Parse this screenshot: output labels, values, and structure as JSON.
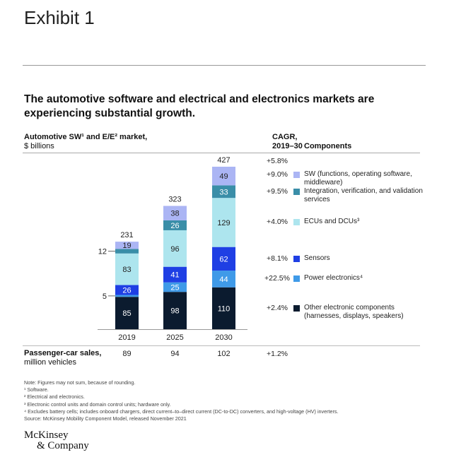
{
  "exhibit_label": "Exhibit 1",
  "title": "The automotive software and electrical and electronics markets are experiencing substantial growth.",
  "chart_data": {
    "type": "bar",
    "stacked": true,
    "ylabel_main": "Automotive SW¹ and E/E² market,",
    "ylabel_unit": "$ billions",
    "categories": [
      "2019",
      "2025",
      "2030"
    ],
    "totals": [
      "231",
      "323",
      "427"
    ],
    "series": [
      {
        "name": "Other electronic components (harnesses, displays, speakers)",
        "color": "#0b1b2f",
        "values": [
          85,
          98,
          110
        ],
        "labels": [
          "85",
          "98",
          "110"
        ],
        "cagr": "+2.4%"
      },
      {
        "name": "Power electronics⁴",
        "color": "#3f9ae8",
        "values": [
          5,
          25,
          44
        ],
        "labels": [
          "5",
          "25",
          "44"
        ],
        "cagr": "+22.5%"
      },
      {
        "name": "Sensors",
        "color": "#1f3fe4",
        "values": [
          26,
          41,
          62
        ],
        "labels": [
          "26",
          "41",
          "62"
        ],
        "cagr": "+8.1%"
      },
      {
        "name": "ECUs and DCUs³",
        "color": "#ade5ee",
        "values": [
          83,
          96,
          129
        ],
        "labels": [
          "83",
          "96",
          "129"
        ],
        "cagr": "+4.0%"
      },
      {
        "name": "Integration, verification, and validation services",
        "color": "#3a8ea8",
        "values": [
          12,
          26,
          33
        ],
        "labels": [
          "12",
          "26",
          "33"
        ],
        "cagr": "+9.5%"
      },
      {
        "name": "SW (functions, operating software, middleware)",
        "color": "#abb5f4",
        "values": [
          19,
          38,
          49
        ],
        "labels": [
          "19",
          "38",
          "49"
        ],
        "cagr": "+9.0%"
      }
    ],
    "total_cagr": "+5.8%",
    "cagr_header": [
      "CAGR,",
      "2019–30"
    ],
    "legend_title": "Components",
    "legend_placement": "right"
  },
  "sales": {
    "label": "Passenger-car sales,",
    "unit": "million vehicles",
    "values": [
      "89",
      "94",
      "102"
    ],
    "cagr": "+1.2%"
  },
  "footnotes": [
    "Note: Figures may not sum, because of rounding.",
    "¹ Software.",
    "² Electrical and electronics.",
    "³ Electronic control units and domain control units; hardware only.",
    "⁴ Excludes battery cells; includes onboard chargers, direct current–to–direct current (DC-to-DC) converters, and high-voltage (HV) inverters.",
    "Source: McKinsey Mobility Component Model, released November 2021"
  ],
  "logo": [
    "McKinsey",
    "& Company"
  ]
}
